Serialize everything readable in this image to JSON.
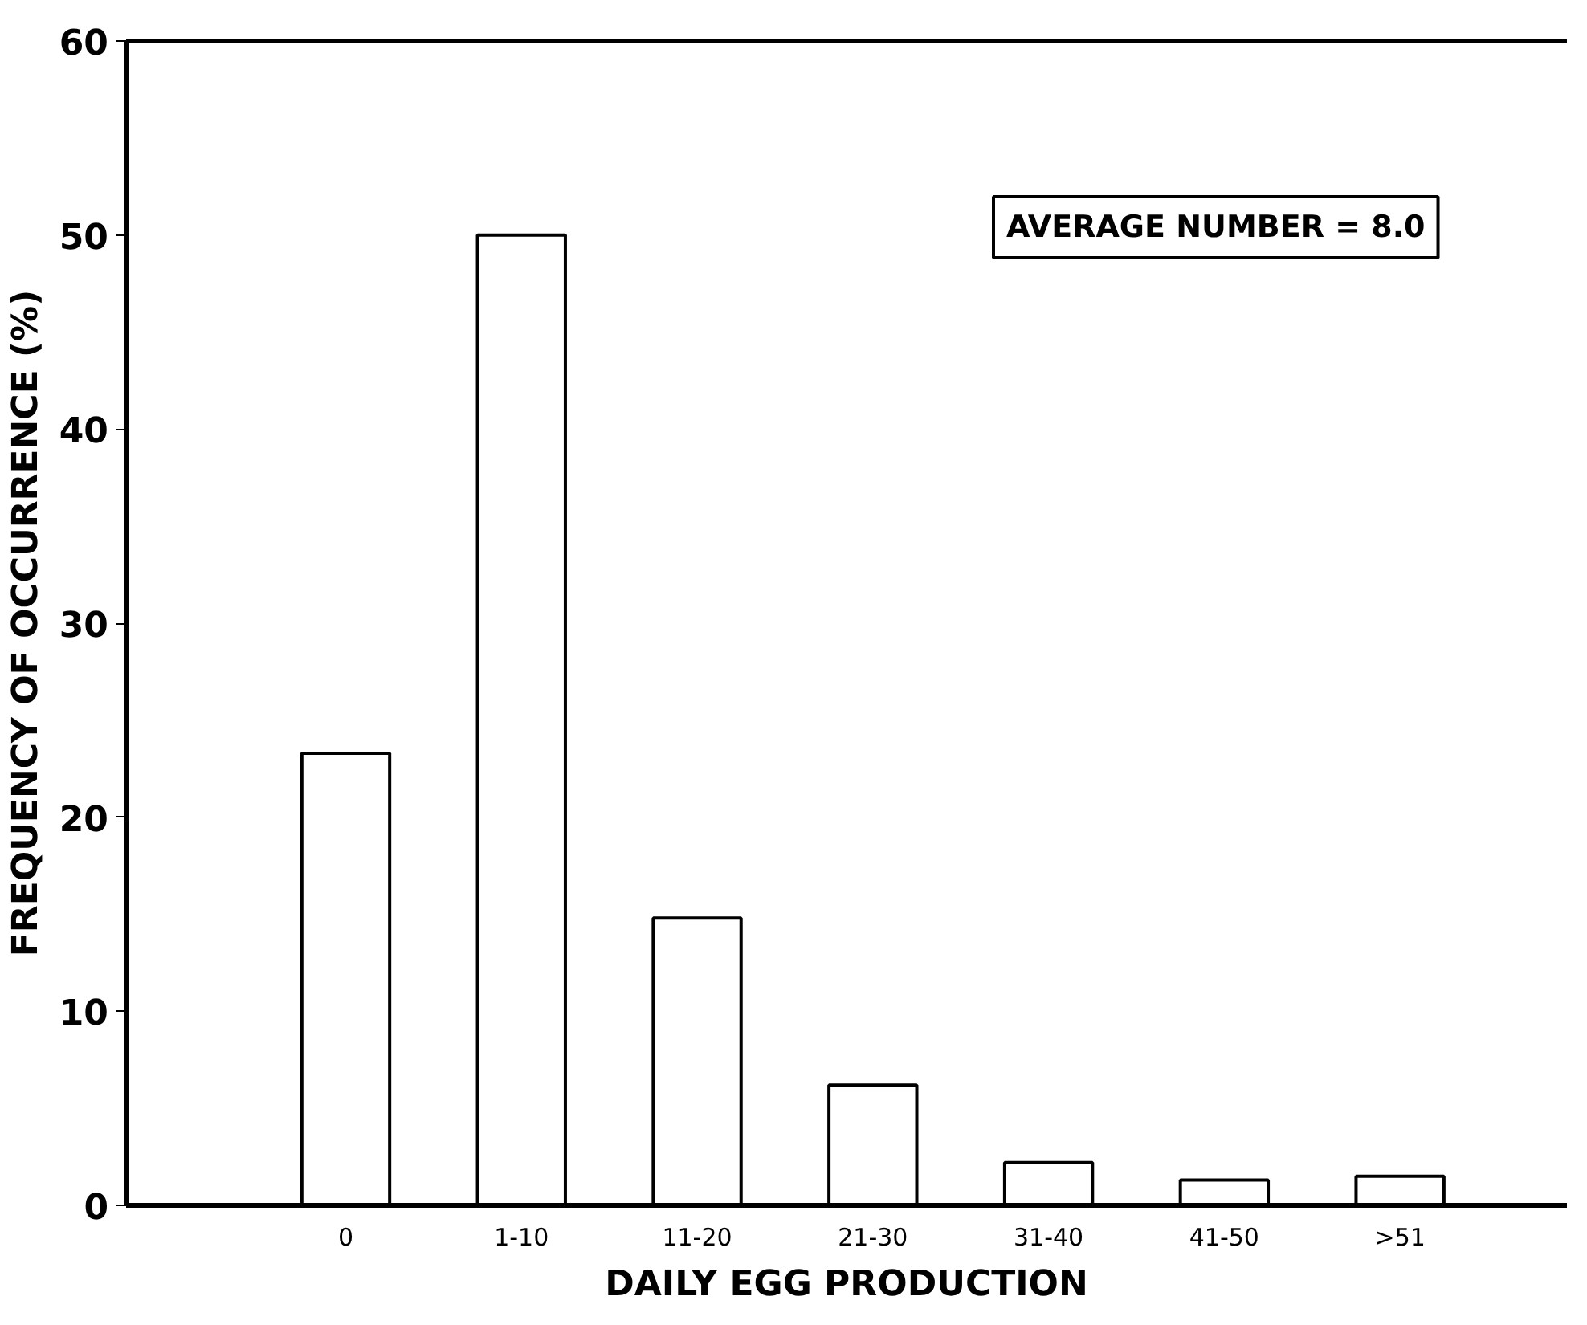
{
  "chart_data": {
    "type": "bar",
    "xlabel": "DAILY EGG PRODUCTION",
    "ylabel": "FREQUENCY OF OCCURRENCE (%)",
    "categories": [
      "0",
      "1-10",
      "11-20",
      "21-30",
      "31-40",
      "41-50",
      ">51"
    ],
    "values": [
      23.3,
      50,
      14.8,
      6.2,
      2.2,
      1.3,
      1.5
    ],
    "color": "#ffffff",
    "ylim": [
      0,
      60
    ],
    "yticks": [
      0,
      10,
      20,
      30,
      40,
      50,
      60
    ],
    "annotations": [
      "AVERAGE NUMBER = 8.0"
    ],
    "grid": false
  }
}
